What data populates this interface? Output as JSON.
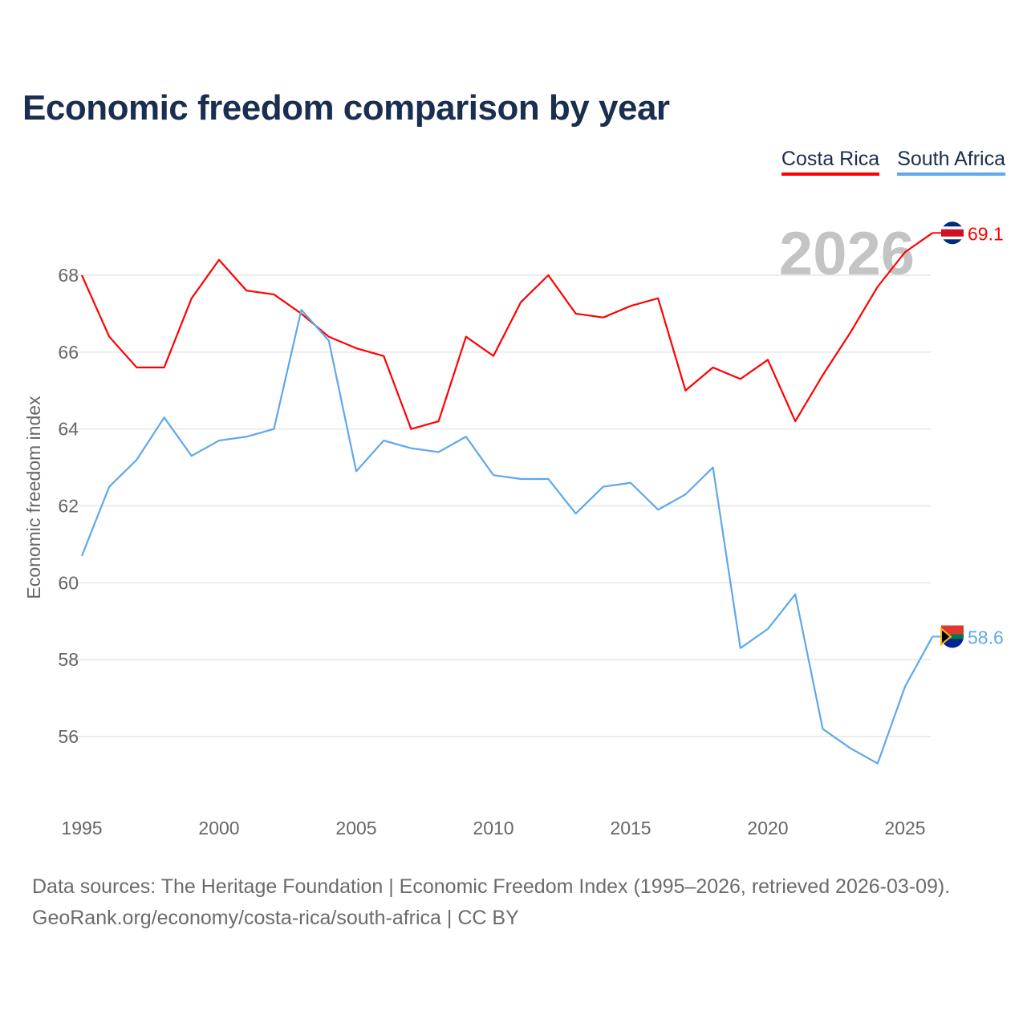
{
  "chart_data": {
    "type": "line",
    "title": "Economic freedom comparison by year",
    "xlabel": "",
    "ylabel": "Economic freedom index",
    "x": [
      1995,
      1996,
      1997,
      1998,
      1999,
      2000,
      2001,
      2002,
      2003,
      2004,
      2005,
      2006,
      2007,
      2008,
      2009,
      2010,
      2011,
      2012,
      2013,
      2014,
      2015,
      2016,
      2017,
      2018,
      2019,
      2020,
      2021,
      2022,
      2023,
      2024,
      2025,
      2026
    ],
    "xticks": [
      "1995",
      "2000",
      "2005",
      "2010",
      "2015",
      "2020",
      "2025"
    ],
    "yticks": [
      "56",
      "58",
      "60",
      "62",
      "64",
      "66",
      "68"
    ],
    "ylim": [
      54.3,
      69.7
    ],
    "grid": true,
    "legend_position": "top-right",
    "year_watermark": "2026",
    "series": [
      {
        "name": "Costa Rica",
        "color": "#ff0000",
        "end_label": "69.1",
        "values": [
          68.0,
          66.4,
          65.6,
          65.6,
          67.4,
          68.4,
          67.6,
          67.5,
          67.0,
          66.4,
          66.1,
          65.9,
          64.0,
          64.2,
          66.4,
          65.9,
          67.3,
          68.0,
          67.0,
          66.9,
          67.2,
          67.4,
          65.0,
          65.6,
          65.3,
          65.8,
          64.2,
          65.4,
          66.5,
          67.7,
          68.6,
          69.1
        ]
      },
      {
        "name": "South Africa",
        "color": "#5ea8ec",
        "end_label": "58.6",
        "values": [
          60.7,
          62.5,
          63.2,
          64.3,
          63.3,
          63.7,
          63.8,
          64.0,
          67.1,
          66.3,
          62.9,
          63.7,
          63.5,
          63.4,
          63.8,
          62.8,
          62.7,
          62.7,
          61.8,
          62.5,
          62.6,
          61.9,
          62.3,
          63.0,
          58.3,
          58.8,
          59.7,
          56.2,
          55.7,
          55.3,
          57.3,
          58.6
        ]
      }
    ]
  },
  "footer": {
    "line1": "Data sources: The Heritage Foundation | Economic Freedom Index (1995–2026, retrieved 2026-03-09).",
    "line2": "GeoRank.org/economy/costa-rica/south-africa | CC BY"
  }
}
